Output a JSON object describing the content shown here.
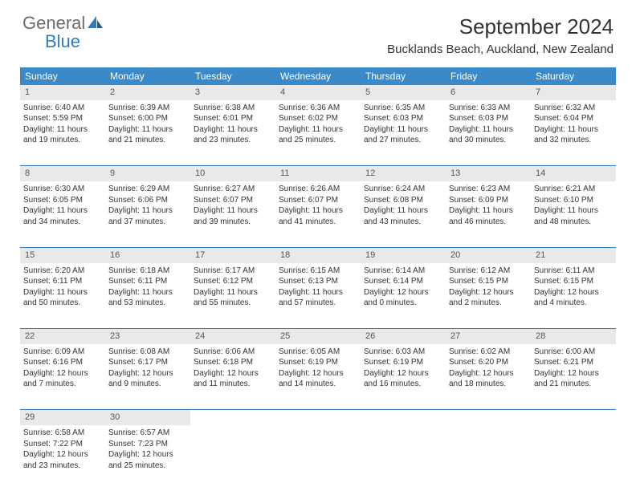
{
  "logo": {
    "text1": "General",
    "text2": "Blue"
  },
  "title": "September 2024",
  "location": "Bucklands Beach, Auckland, New Zealand",
  "colors": {
    "header_bg": "#3a8ac9",
    "header_text": "#ffffff",
    "daynum_bg": "#e9e9e9",
    "border": "#2f7bbf",
    "logo_gray": "#6b6b6b",
    "logo_blue": "#2f7bbf"
  },
  "typography": {
    "title_fontsize": 26,
    "location_fontsize": 15,
    "dayheader_fontsize": 12,
    "daynum_fontsize": 11,
    "cell_fontsize": 10
  },
  "day_headers": [
    "Sunday",
    "Monday",
    "Tuesday",
    "Wednesday",
    "Thursday",
    "Friday",
    "Saturday"
  ],
  "weeks": [
    [
      {
        "num": "1",
        "sunrise": "Sunrise: 6:40 AM",
        "sunset": "Sunset: 5:59 PM",
        "day1": "Daylight: 11 hours",
        "day2": "and 19 minutes."
      },
      {
        "num": "2",
        "sunrise": "Sunrise: 6:39 AM",
        "sunset": "Sunset: 6:00 PM",
        "day1": "Daylight: 11 hours",
        "day2": "and 21 minutes."
      },
      {
        "num": "3",
        "sunrise": "Sunrise: 6:38 AM",
        "sunset": "Sunset: 6:01 PM",
        "day1": "Daylight: 11 hours",
        "day2": "and 23 minutes."
      },
      {
        "num": "4",
        "sunrise": "Sunrise: 6:36 AM",
        "sunset": "Sunset: 6:02 PM",
        "day1": "Daylight: 11 hours",
        "day2": "and 25 minutes."
      },
      {
        "num": "5",
        "sunrise": "Sunrise: 6:35 AM",
        "sunset": "Sunset: 6:03 PM",
        "day1": "Daylight: 11 hours",
        "day2": "and 27 minutes."
      },
      {
        "num": "6",
        "sunrise": "Sunrise: 6:33 AM",
        "sunset": "Sunset: 6:03 PM",
        "day1": "Daylight: 11 hours",
        "day2": "and 30 minutes."
      },
      {
        "num": "7",
        "sunrise": "Sunrise: 6:32 AM",
        "sunset": "Sunset: 6:04 PM",
        "day1": "Daylight: 11 hours",
        "day2": "and 32 minutes."
      }
    ],
    [
      {
        "num": "8",
        "sunrise": "Sunrise: 6:30 AM",
        "sunset": "Sunset: 6:05 PM",
        "day1": "Daylight: 11 hours",
        "day2": "and 34 minutes."
      },
      {
        "num": "9",
        "sunrise": "Sunrise: 6:29 AM",
        "sunset": "Sunset: 6:06 PM",
        "day1": "Daylight: 11 hours",
        "day2": "and 37 minutes."
      },
      {
        "num": "10",
        "sunrise": "Sunrise: 6:27 AM",
        "sunset": "Sunset: 6:07 PM",
        "day1": "Daylight: 11 hours",
        "day2": "and 39 minutes."
      },
      {
        "num": "11",
        "sunrise": "Sunrise: 6:26 AM",
        "sunset": "Sunset: 6:07 PM",
        "day1": "Daylight: 11 hours",
        "day2": "and 41 minutes."
      },
      {
        "num": "12",
        "sunrise": "Sunrise: 6:24 AM",
        "sunset": "Sunset: 6:08 PM",
        "day1": "Daylight: 11 hours",
        "day2": "and 43 minutes."
      },
      {
        "num": "13",
        "sunrise": "Sunrise: 6:23 AM",
        "sunset": "Sunset: 6:09 PM",
        "day1": "Daylight: 11 hours",
        "day2": "and 46 minutes."
      },
      {
        "num": "14",
        "sunrise": "Sunrise: 6:21 AM",
        "sunset": "Sunset: 6:10 PM",
        "day1": "Daylight: 11 hours",
        "day2": "and 48 minutes."
      }
    ],
    [
      {
        "num": "15",
        "sunrise": "Sunrise: 6:20 AM",
        "sunset": "Sunset: 6:11 PM",
        "day1": "Daylight: 11 hours",
        "day2": "and 50 minutes."
      },
      {
        "num": "16",
        "sunrise": "Sunrise: 6:18 AM",
        "sunset": "Sunset: 6:11 PM",
        "day1": "Daylight: 11 hours",
        "day2": "and 53 minutes."
      },
      {
        "num": "17",
        "sunrise": "Sunrise: 6:17 AM",
        "sunset": "Sunset: 6:12 PM",
        "day1": "Daylight: 11 hours",
        "day2": "and 55 minutes."
      },
      {
        "num": "18",
        "sunrise": "Sunrise: 6:15 AM",
        "sunset": "Sunset: 6:13 PM",
        "day1": "Daylight: 11 hours",
        "day2": "and 57 minutes."
      },
      {
        "num": "19",
        "sunrise": "Sunrise: 6:14 AM",
        "sunset": "Sunset: 6:14 PM",
        "day1": "Daylight: 12 hours",
        "day2": "and 0 minutes."
      },
      {
        "num": "20",
        "sunrise": "Sunrise: 6:12 AM",
        "sunset": "Sunset: 6:15 PM",
        "day1": "Daylight: 12 hours",
        "day2": "and 2 minutes."
      },
      {
        "num": "21",
        "sunrise": "Sunrise: 6:11 AM",
        "sunset": "Sunset: 6:15 PM",
        "day1": "Daylight: 12 hours",
        "day2": "and 4 minutes."
      }
    ],
    [
      {
        "num": "22",
        "sunrise": "Sunrise: 6:09 AM",
        "sunset": "Sunset: 6:16 PM",
        "day1": "Daylight: 12 hours",
        "day2": "and 7 minutes."
      },
      {
        "num": "23",
        "sunrise": "Sunrise: 6:08 AM",
        "sunset": "Sunset: 6:17 PM",
        "day1": "Daylight: 12 hours",
        "day2": "and 9 minutes."
      },
      {
        "num": "24",
        "sunrise": "Sunrise: 6:06 AM",
        "sunset": "Sunset: 6:18 PM",
        "day1": "Daylight: 12 hours",
        "day2": "and 11 minutes."
      },
      {
        "num": "25",
        "sunrise": "Sunrise: 6:05 AM",
        "sunset": "Sunset: 6:19 PM",
        "day1": "Daylight: 12 hours",
        "day2": "and 14 minutes."
      },
      {
        "num": "26",
        "sunrise": "Sunrise: 6:03 AM",
        "sunset": "Sunset: 6:19 PM",
        "day1": "Daylight: 12 hours",
        "day2": "and 16 minutes."
      },
      {
        "num": "27",
        "sunrise": "Sunrise: 6:02 AM",
        "sunset": "Sunset: 6:20 PM",
        "day1": "Daylight: 12 hours",
        "day2": "and 18 minutes."
      },
      {
        "num": "28",
        "sunrise": "Sunrise: 6:00 AM",
        "sunset": "Sunset: 6:21 PM",
        "day1": "Daylight: 12 hours",
        "day2": "and 21 minutes."
      }
    ],
    [
      {
        "num": "29",
        "sunrise": "Sunrise: 6:58 AM",
        "sunset": "Sunset: 7:22 PM",
        "day1": "Daylight: 12 hours",
        "day2": "and 23 minutes."
      },
      {
        "num": "30",
        "sunrise": "Sunrise: 6:57 AM",
        "sunset": "Sunset: 7:23 PM",
        "day1": "Daylight: 12 hours",
        "day2": "and 25 minutes."
      },
      null,
      null,
      null,
      null,
      null
    ]
  ]
}
